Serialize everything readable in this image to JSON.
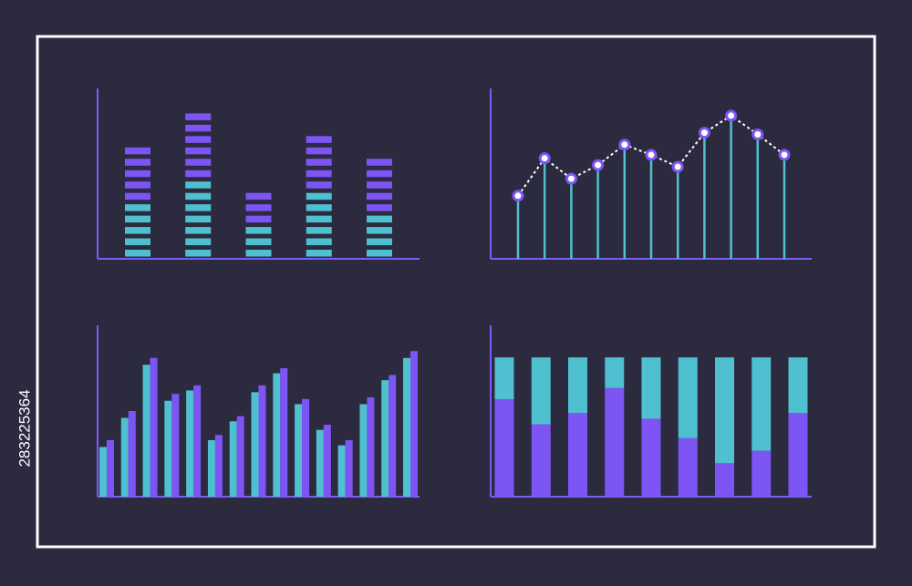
{
  "image_id": "283225364",
  "chart_data": [
    {
      "type": "bar",
      "stacked": true,
      "segmented": true,
      "ylim": [
        0,
        15
      ],
      "axis_color": "#7b5cf5",
      "series": [
        {
          "color": "#4fc0cf",
          "values": [
            5,
            7,
            3,
            6,
            4
          ]
        },
        {
          "color": "#7d55f5",
          "values": [
            5,
            6,
            3,
            5,
            5
          ]
        }
      ]
    },
    {
      "type": "line",
      "stems": true,
      "ylim": [
        0,
        100
      ],
      "axis_color": "#7b5cf5",
      "stem_color": "#4fc0cf",
      "point_color": "#7d55f5",
      "line_color": "#ffffff",
      "values": [
        37,
        59,
        47,
        55,
        67,
        61,
        54,
        74,
        84,
        73,
        61
      ]
    },
    {
      "type": "bar",
      "stacked": false,
      "ylim": [
        0,
        100
      ],
      "axis_color": "#7b5cf5",
      "series": [
        {
          "color": "#4fc0cf",
          "values": [
            29,
            46,
            77,
            56,
            62,
            33,
            44,
            61,
            72,
            54,
            39,
            30,
            54,
            68,
            81
          ]
        },
        {
          "color": "#7d55f5",
          "values": [
            33,
            50,
            81,
            60,
            65,
            36,
            47,
            65,
            75,
            57,
            42,
            33,
            58,
            71,
            85
          ]
        }
      ]
    },
    {
      "type": "bar",
      "stacked": true,
      "ylim": [
        0,
        123
      ],
      "axis_color": "#7b5cf5",
      "series": [
        {
          "color": "#7d55f5",
          "values": [
            70,
            52,
            60,
            78,
            56,
            42,
            24,
            33,
            60
          ]
        },
        {
          "color": "#4fc0cf",
          "values": [
            30,
            48,
            40,
            22,
            44,
            58,
            76,
            67,
            40
          ]
        }
      ]
    }
  ]
}
